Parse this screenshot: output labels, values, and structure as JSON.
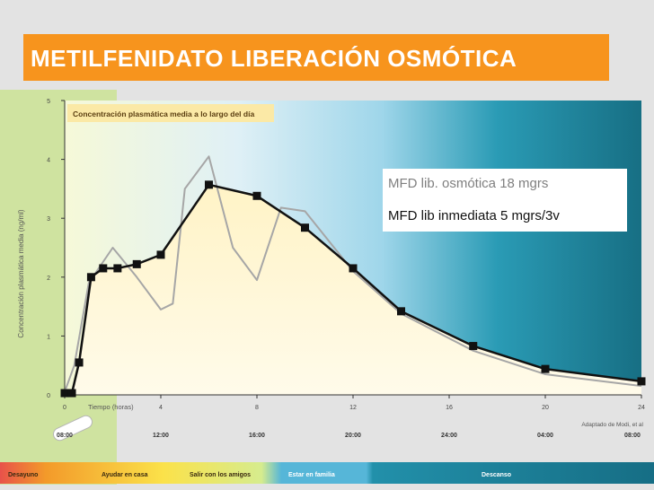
{
  "slide_title": "METILFENIDATO LIBERACIÓN OSMÓTICA",
  "colors": {
    "title_bar": "#f7941d",
    "curve_osmotic": "#111111",
    "curve_immediate": "#a6a6a6",
    "teal_background": "#2a9bb5",
    "fill_under_curve": "#fff7d4",
    "left_strip": "#cfe3a0"
  },
  "legend": {
    "osmotic_label": "MFD lib. osmótica 18 mgrs",
    "immediate_label": "MFD lib inmediata 5 mgrs/3v"
  },
  "chart_data": {
    "type": "line",
    "title": "Concentración plasmática media a lo largo del día",
    "ylabel": "Concentración plasmática media (ng/ml)",
    "xlabel": "Tiempo (horas)",
    "source": "Adaptado de Modi, et al",
    "xlim": [
      0,
      24
    ],
    "ylim": [
      0,
      5
    ],
    "x_ticks": [
      0,
      4,
      8,
      12,
      16,
      20,
      24
    ],
    "y_ticks": [
      0,
      1,
      2,
      3,
      4,
      5
    ],
    "clock_labels": [
      "08:00",
      "12:00",
      "16:00",
      "20:00",
      "24:00",
      "04:00",
      "08:00"
    ],
    "activities": [
      "Desayuno",
      "Ayudar en casa",
      "Salir con los amigos",
      "Estar en familia",
      "Descanso"
    ],
    "grid": false,
    "series": [
      {
        "name": "MFD lib. osmótica 18 mgrs",
        "color": "#111111",
        "marker": "square",
        "x": [
          0,
          0.3,
          0.6,
          1.1,
          1.6,
          2.2,
          3,
          4,
          6,
          8,
          10,
          12,
          14,
          17,
          20,
          24
        ],
        "y": [
          0.03,
          0.03,
          0.55,
          2.0,
          2.15,
          2.15,
          2.22,
          2.38,
          3.57,
          3.38,
          2.84,
          2.15,
          1.42,
          0.83,
          0.44,
          0.23
        ]
      },
      {
        "name": "MFD lib inmediata 5 mgrs/3v",
        "color": "#a6a6a6",
        "marker": "none",
        "x": [
          0,
          0.4,
          1,
          2,
          3,
          4,
          4.5,
          5,
          6,
          7,
          8,
          9,
          10,
          12,
          14,
          17,
          20,
          24
        ],
        "y": [
          0.05,
          0.5,
          1.9,
          2.5,
          2.0,
          1.45,
          1.55,
          3.5,
          4.05,
          2.5,
          1.95,
          3.18,
          3.12,
          2.1,
          1.38,
          0.75,
          0.35,
          0.15
        ]
      }
    ]
  }
}
